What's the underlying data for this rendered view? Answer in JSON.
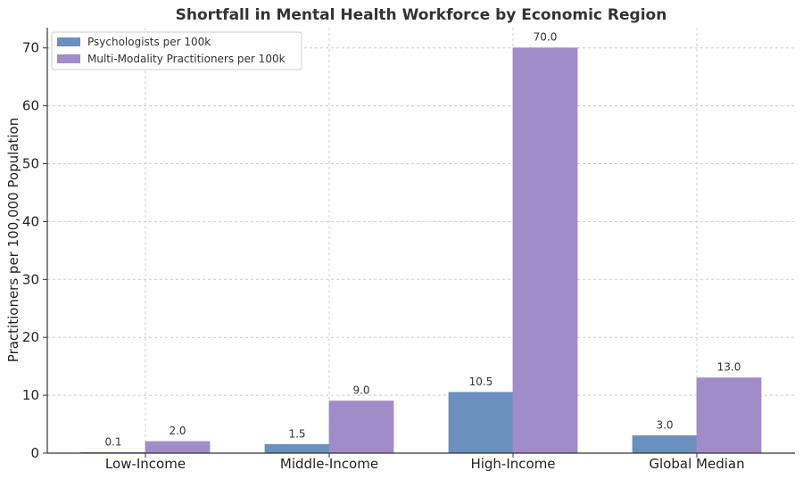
{
  "chart_data": {
    "type": "bar",
    "title": "Shortfall in Mental Health Workforce by Economic Region",
    "xlabel": "",
    "ylabel": "Practitioners per 100,000 Population",
    "categories": [
      "Low-Income",
      "Middle-Income",
      "High-Income",
      "Global Median"
    ],
    "series": [
      {
        "name": "Psychologists per 100k",
        "values": [
          0.1,
          1.5,
          10.5,
          3.0
        ],
        "color": "#6b8fbf"
      },
      {
        "name": "Multi-Modality Practitioners per 100k",
        "values": [
          2.0,
          9.0,
          70.0,
          13.0
        ],
        "color": "#a08cc8"
      }
    ],
    "data_labels": [
      [
        "0.1",
        "1.5",
        "10.5",
        "3.0"
      ],
      [
        "2.0",
        "9.0",
        "70.0",
        "13.0"
      ]
    ],
    "ylim": [
      0,
      73.5
    ],
    "yticks": [
      0,
      10,
      20,
      30,
      40,
      50,
      60,
      70
    ],
    "ytick_labels": [
      "0",
      "10",
      "20",
      "30",
      "40",
      "50",
      "60",
      "70"
    ],
    "grid": true,
    "legend_position": "top-left"
  }
}
